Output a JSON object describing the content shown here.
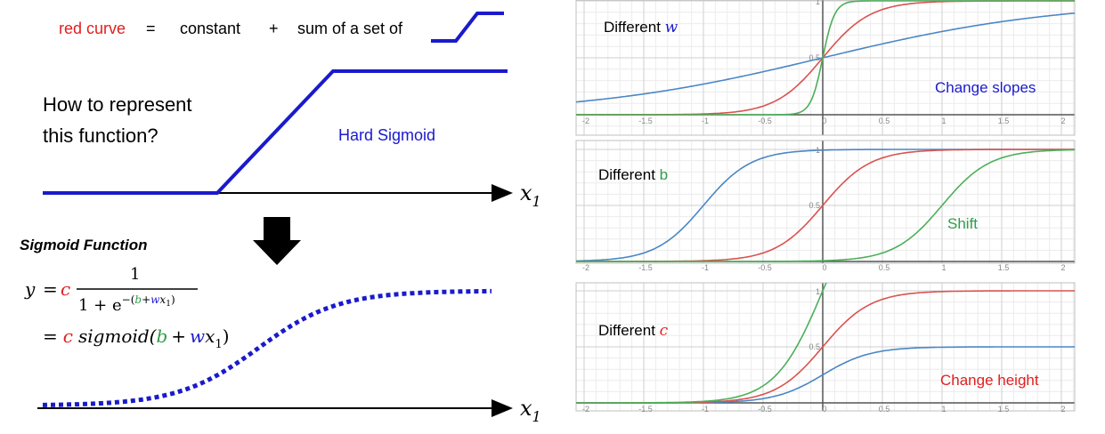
{
  "left": {
    "equation": {
      "red_curve": "red curve",
      "eq": "=",
      "constant": "constant",
      "plus": "+",
      "sum_of": "sum of a set of"
    },
    "question_line1": "How to represent",
    "question_line2": "this function?",
    "hard_sigmoid_label": "Hard Sigmoid",
    "axis_label_top": "x",
    "axis_label_top_sub": "1",
    "sigmoid_title": "Sigmoid Function",
    "formula": {
      "y": "y",
      "eq1": "=",
      "c": "c",
      "num": "1",
      "den_prefix": "1 + e",
      "exp_open": "−(",
      "b": "b",
      "exp_plus": "+",
      "w": "w",
      "x1": "x",
      "x1_sub": "1",
      "exp_close": ")",
      "eq2": "=",
      "sigmoid": "sigmoid(",
      "plus": "+",
      "close": ")"
    },
    "axis_label_bottom": "x",
    "axis_label_bottom_sub": "1"
  },
  "panels": [
    {
      "label_prefix": "Different ",
      "label_var": "w",
      "label_var_color": "#1a1acc",
      "note": "Change slopes",
      "note_color": "#1a1acc",
      "ytick_mid": "0.5",
      "ytick_top": "1"
    },
    {
      "label_prefix": "Different ",
      "label_var": "b",
      "label_var_color": "#2e9e4a",
      "note": "Shift",
      "note_color": "#2e9e4a",
      "ytick_mid": "0.5",
      "ytick_top": "1"
    },
    {
      "label_prefix": "Different ",
      "label_var": "c",
      "label_var_color": "#e02020",
      "note": "Change height",
      "note_color": "#e02020",
      "ytick_mid": "0.5",
      "ytick_top": "1"
    }
  ],
  "xticks": [
    "-2",
    "-1.5",
    "-1",
    "-0.5",
    "0",
    "0.5",
    "1",
    "1.5",
    "2"
  ],
  "colors": {
    "red": "#e02020",
    "blue": "#1a1acc",
    "green": "#2e9e4a",
    "curve_red": "#d9534f",
    "curve_blue": "#4a86c6",
    "curve_green": "#4caf5a"
  }
}
